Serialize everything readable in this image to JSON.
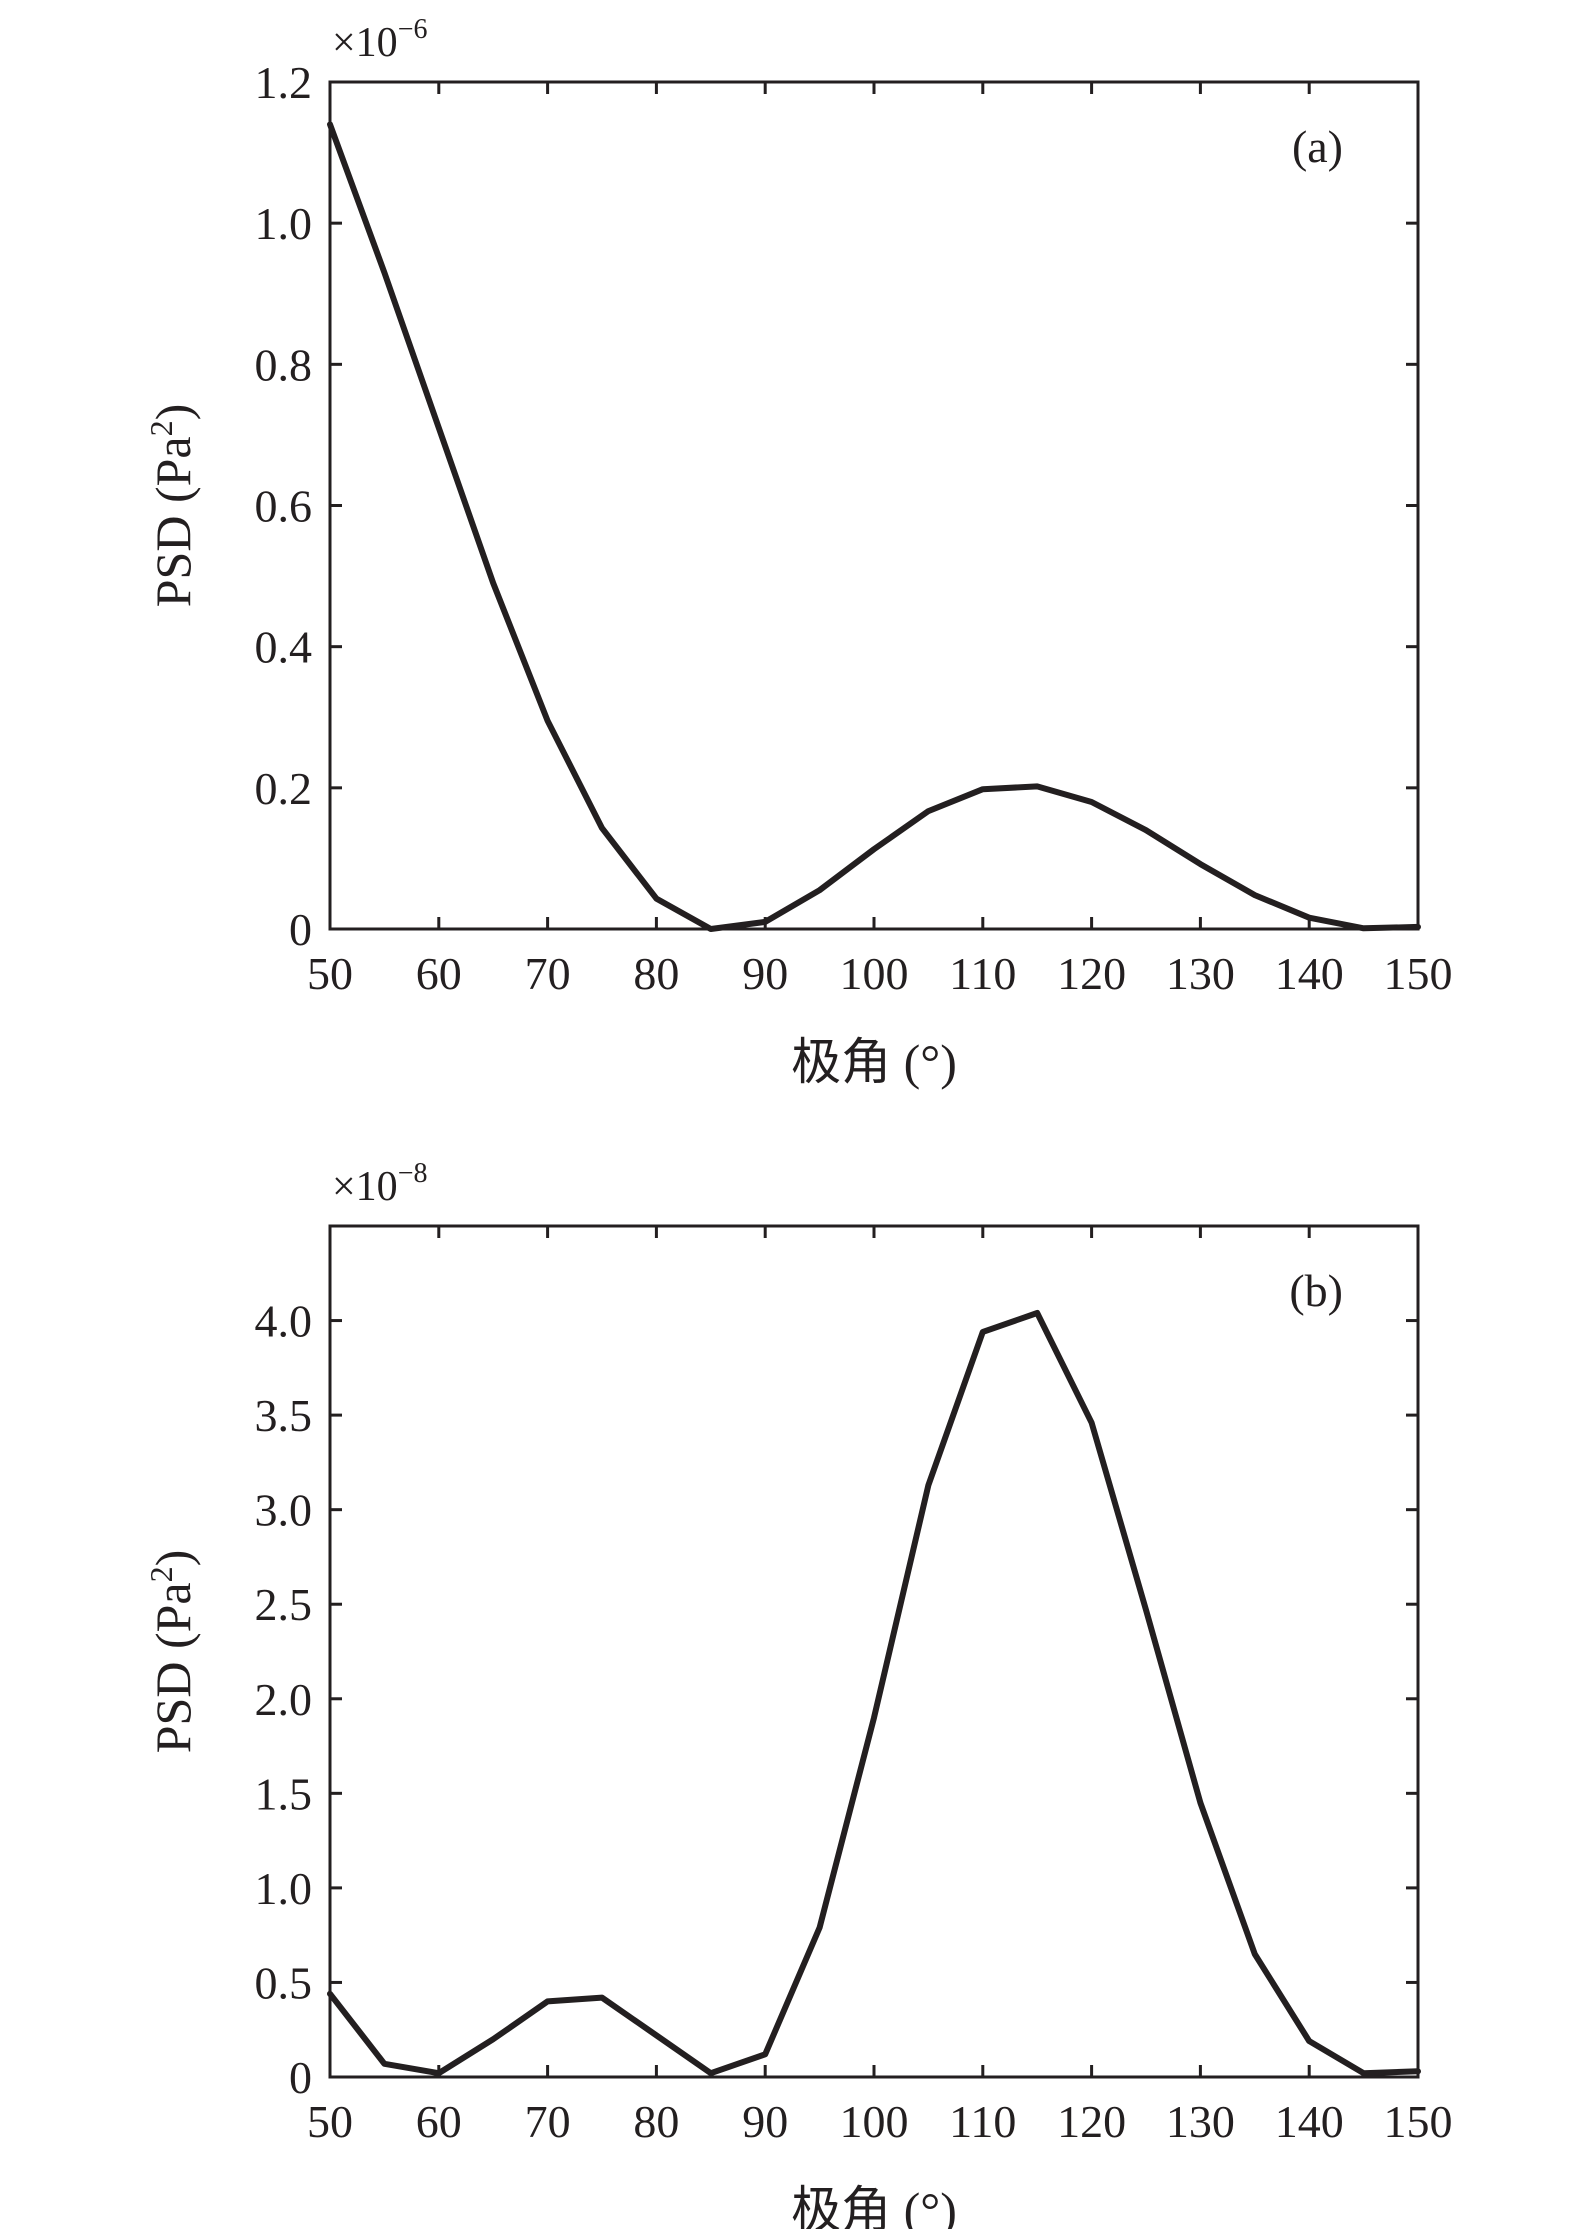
{
  "chart_data": [
    {
      "type": "line",
      "panel_label": "(a)",
      "multiplier": "×10",
      "multiplier_exp": "−6",
      "xlabel": "极角 (°)",
      "ylabel": "PSD (Pa",
      "ylabel_sup": "2",
      "ylabel_close": ")",
      "xlim": [
        50,
        150
      ],
      "ylim": [
        0,
        1.2
      ],
      "grid": false,
      "x_ticks": [
        50,
        60,
        70,
        80,
        90,
        100,
        110,
        120,
        130,
        140,
        150
      ],
      "x_tick_labels": [
        "50",
        "60",
        "70",
        "80",
        "90",
        "100",
        "110",
        "120",
        "130",
        "140",
        "150"
      ],
      "y_ticks": [
        0,
        0.2,
        0.4,
        0.6,
        0.8,
        1.0,
        1.2
      ],
      "y_tick_labels": [
        "0",
        "0.2",
        "0.4",
        "0.6",
        "0.8",
        "1.0",
        "1.2"
      ],
      "series": [
        {
          "x": [
            50,
            55,
            60,
            65,
            70,
            75,
            80,
            85,
            90,
            95,
            100,
            105,
            110,
            115,
            120,
            125,
            130,
            135,
            140,
            145,
            150
          ],
          "values": [
            1.14,
            0.93,
            0.71,
            0.49,
            0.295,
            0.143,
            0.043,
            0.0,
            0.01,
            0.055,
            0.113,
            0.167,
            0.198,
            0.202,
            0.18,
            0.14,
            0.092,
            0.048,
            0.016,
            0.001,
            0.003
          ]
        }
      ]
    },
    {
      "type": "line",
      "panel_label": "(b)",
      "multiplier": "×10",
      "multiplier_exp": "−8",
      "xlabel": "极角 (°)",
      "ylabel": "PSD (Pa",
      "ylabel_sup": "2",
      "ylabel_close": ")",
      "xlim": [
        50,
        150
      ],
      "ylim": [
        0,
        4.5
      ],
      "grid": false,
      "x_ticks": [
        50,
        60,
        70,
        80,
        90,
        100,
        110,
        120,
        130,
        140,
        150
      ],
      "x_tick_labels": [
        "50",
        "60",
        "70",
        "80",
        "90",
        "100",
        "110",
        "120",
        "130",
        "140",
        "150"
      ],
      "y_ticks": [
        0,
        0.5,
        1.0,
        1.5,
        2.0,
        2.5,
        3.0,
        3.5,
        4.0
      ],
      "y_tick_labels": [
        "0",
        "0.5",
        "1.0",
        "1.5",
        "2.0",
        "2.5",
        "3.0",
        "3.5",
        "4.0"
      ],
      "series": [
        {
          "x": [
            50,
            55,
            60,
            65,
            70,
            75,
            80,
            85,
            90,
            95,
            100,
            105,
            110,
            115,
            120,
            125,
            130,
            135,
            140,
            145,
            150
          ],
          "values": [
            0.44,
            0.07,
            0.02,
            0.2,
            0.4,
            0.42,
            0.22,
            0.02,
            0.12,
            0.79,
            1.9,
            3.13,
            3.94,
            4.04,
            3.46,
            2.47,
            1.45,
            0.65,
            0.19,
            0.02,
            0.03
          ]
        }
      ]
    }
  ]
}
